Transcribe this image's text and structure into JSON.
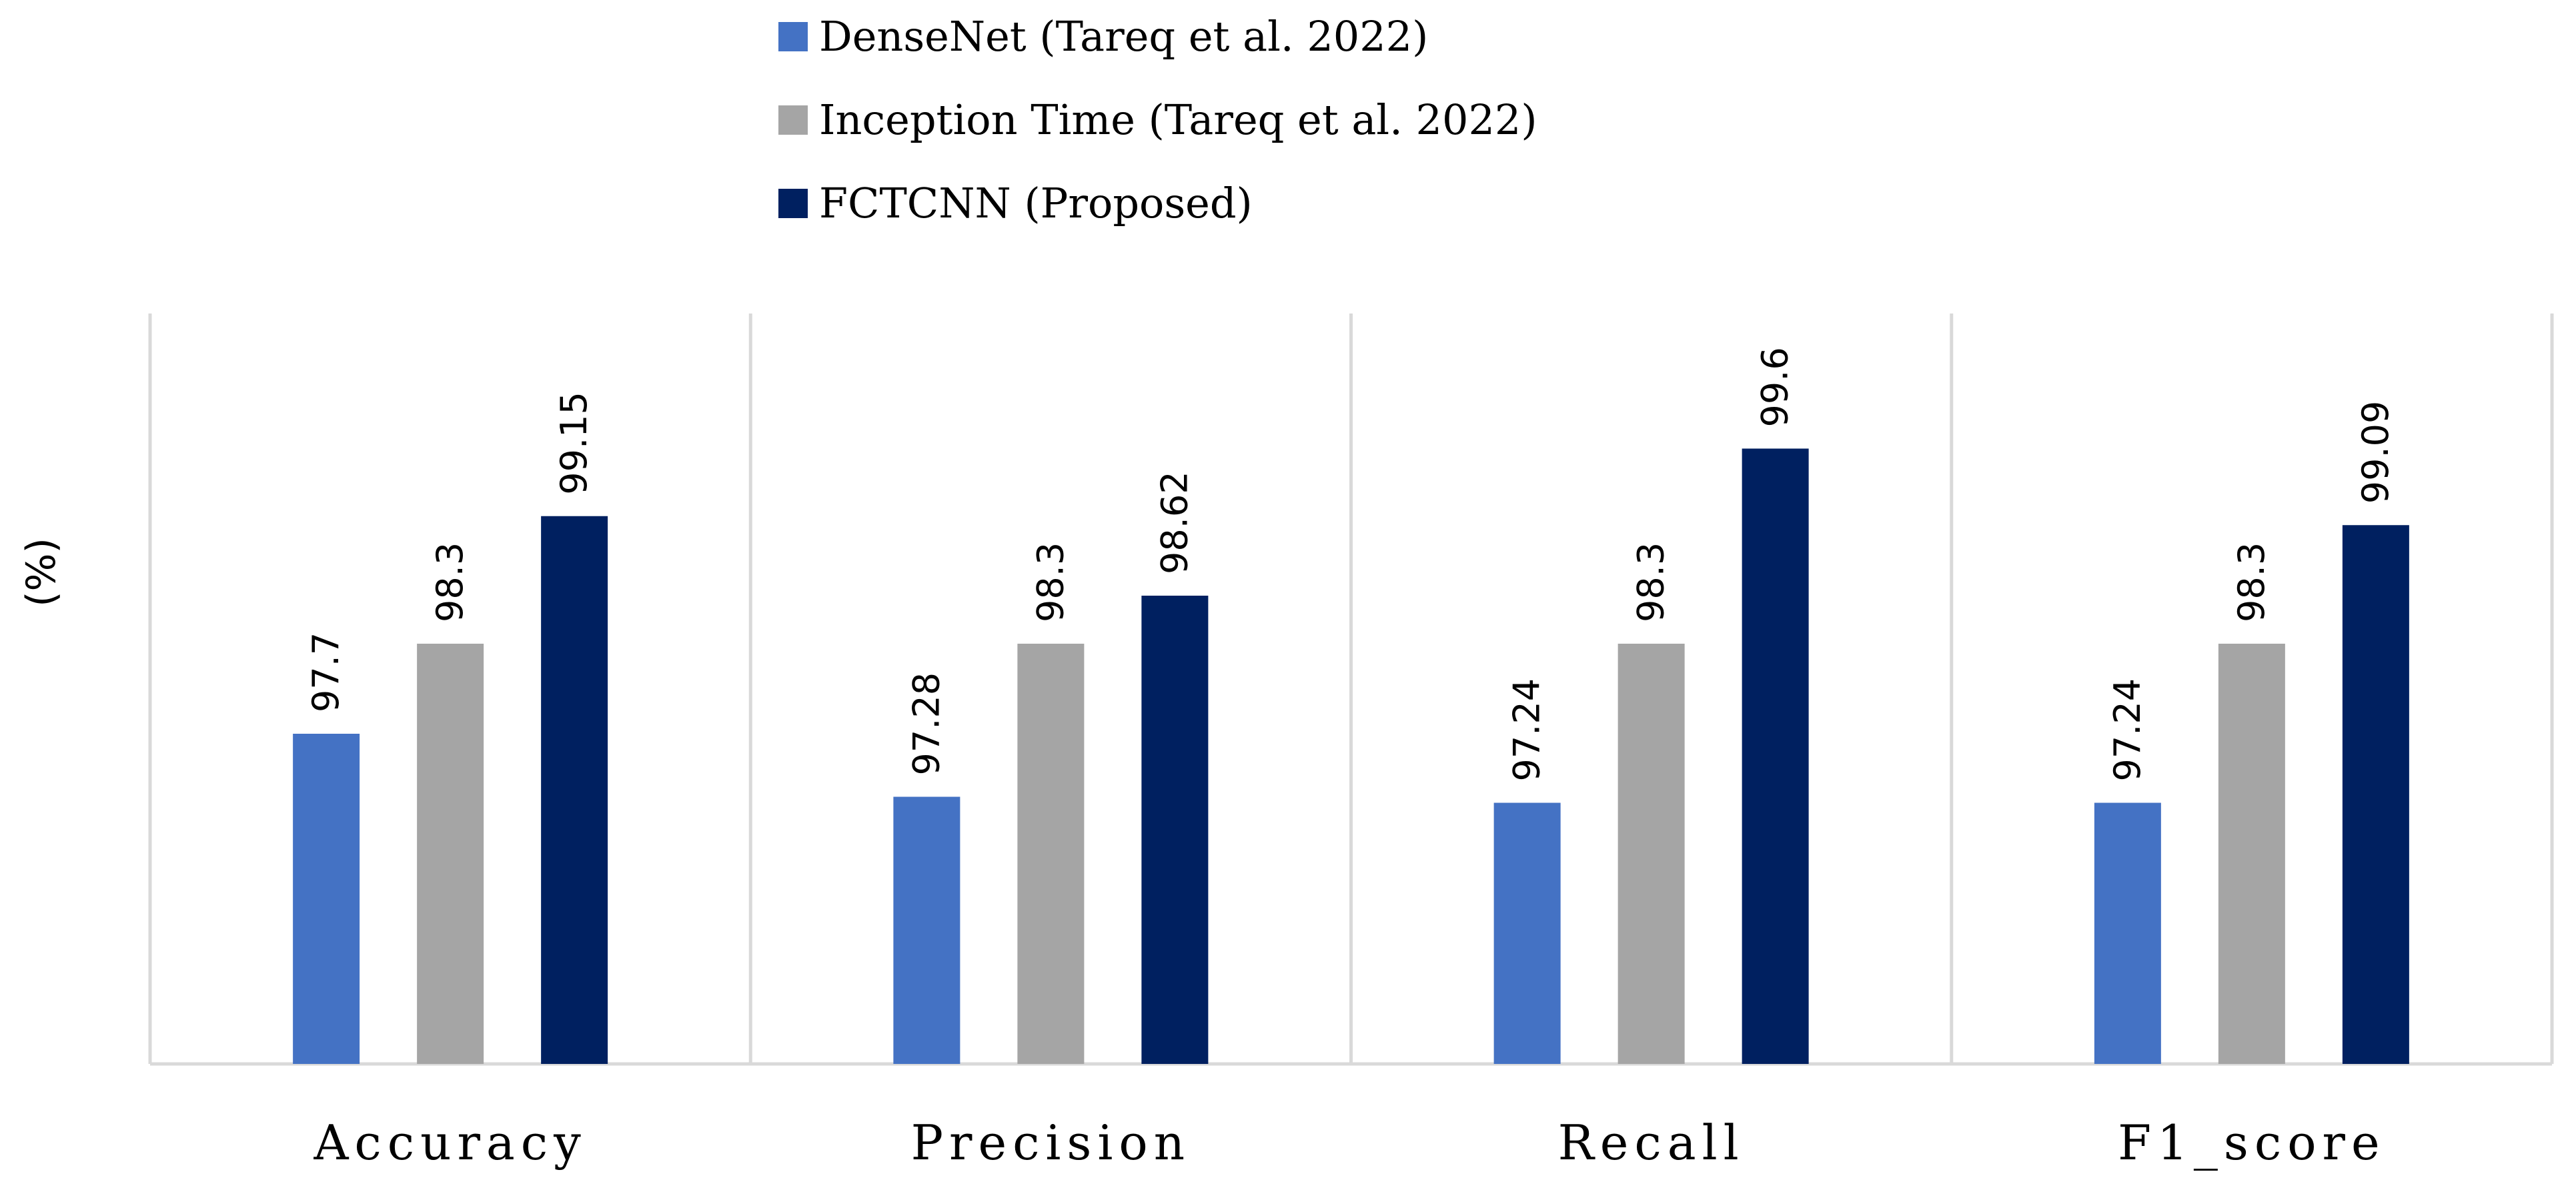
{
  "chart_data": {
    "type": "bar",
    "title": "",
    "xlabel": "",
    "ylabel": "(%)",
    "ylim": [
      95.5,
      100.5
    ],
    "grid": false,
    "legend_position": "top-center",
    "categories": [
      "Accuracy",
      "Precision",
      "Recall",
      "F1_score"
    ],
    "series": [
      {
        "name": "DenseNet (Tareq et al. 2022)",
        "color": "#4472C4",
        "values": [
          97.7,
          97.28,
          97.24,
          97.24
        ],
        "labels": [
          "97.7",
          "97.28",
          "97.24",
          "97.24"
        ]
      },
      {
        "name": "Inception Time (Tareq et al. 2022)",
        "color": "#A5A5A5",
        "values": [
          98.3,
          98.3,
          98.3,
          98.3
        ],
        "labels": [
          "98.3",
          "98.3",
          "98.3",
          "98.3"
        ]
      },
      {
        "name": "FCTCNN (Proposed)",
        "color": "#002060",
        "values": [
          99.15,
          98.62,
          99.6,
          99.09
        ],
        "labels": [
          "99.15",
          "98.62",
          "99.6",
          "99.09"
        ]
      }
    ]
  }
}
